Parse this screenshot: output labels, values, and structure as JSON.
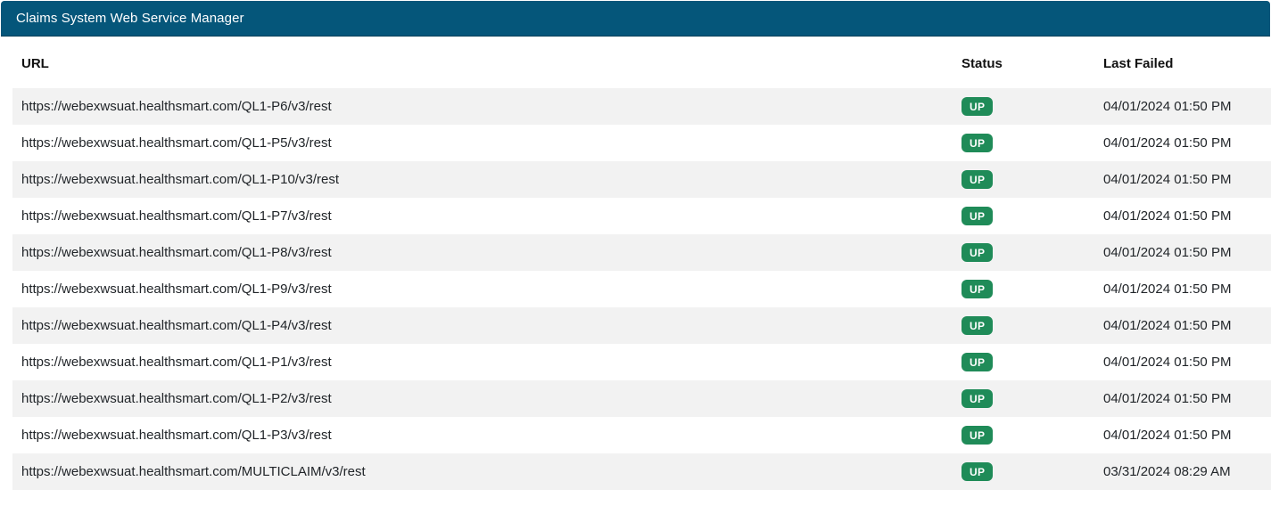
{
  "header": {
    "title": "Claims System Web Service Manager"
  },
  "colors": {
    "header_bg": "#05567a",
    "badge_bg": "#1f8b58",
    "stripe_bg": "#f2f2f2",
    "text_color": "#212529"
  },
  "table": {
    "columns": [
      "URL",
      "Status",
      "Last Failed"
    ],
    "rows": [
      {
        "url": "https://webexwsuat.healthsmart.com/QL1-P6/v3/rest",
        "status": "UP",
        "last_failed": "04/01/2024 01:50 PM"
      },
      {
        "url": "https://webexwsuat.healthsmart.com/QL1-P5/v3/rest",
        "status": "UP",
        "last_failed": "04/01/2024 01:50 PM"
      },
      {
        "url": "https://webexwsuat.healthsmart.com/QL1-P10/v3/rest",
        "status": "UP",
        "last_failed": "04/01/2024 01:50 PM"
      },
      {
        "url": "https://webexwsuat.healthsmart.com/QL1-P7/v3/rest",
        "status": "UP",
        "last_failed": "04/01/2024 01:50 PM"
      },
      {
        "url": "https://webexwsuat.healthsmart.com/QL1-P8/v3/rest",
        "status": "UP",
        "last_failed": "04/01/2024 01:50 PM"
      },
      {
        "url": "https://webexwsuat.healthsmart.com/QL1-P9/v3/rest",
        "status": "UP",
        "last_failed": "04/01/2024 01:50 PM"
      },
      {
        "url": "https://webexwsuat.healthsmart.com/QL1-P4/v3/rest",
        "status": "UP",
        "last_failed": "04/01/2024 01:50 PM"
      },
      {
        "url": "https://webexwsuat.healthsmart.com/QL1-P1/v3/rest",
        "status": "UP",
        "last_failed": "04/01/2024 01:50 PM"
      },
      {
        "url": "https://webexwsuat.healthsmart.com/QL1-P2/v3/rest",
        "status": "UP",
        "last_failed": "04/01/2024 01:50 PM"
      },
      {
        "url": "https://webexwsuat.healthsmart.com/QL1-P3/v3/rest",
        "status": "UP",
        "last_failed": "04/01/2024 01:50 PM"
      },
      {
        "url": "https://webexwsuat.healthsmart.com/MULTICLAIM/v3/rest",
        "status": "UP",
        "last_failed": "03/31/2024 08:29 AM"
      }
    ]
  }
}
